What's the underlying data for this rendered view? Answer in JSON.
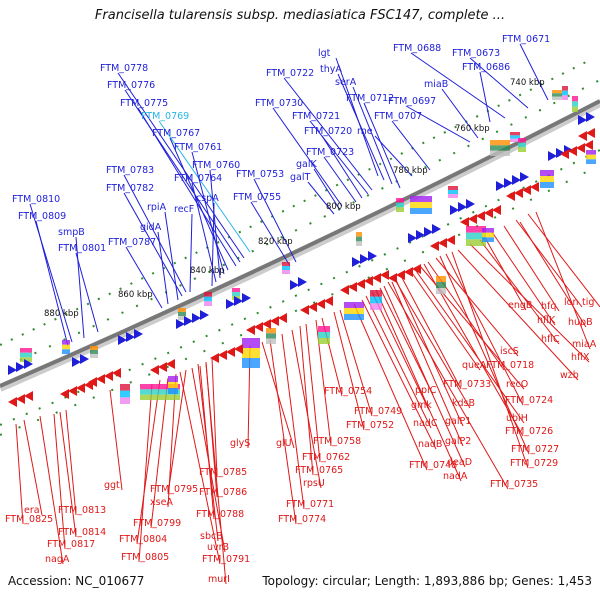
{
  "title": "Francisella tularensis subsp. mediasiatica FSC147, complete ...",
  "footer": {
    "accession": "Accession: NC_010677",
    "summary": "Topology: circular; Length: 1,893,886 bp; Genes: 1,453"
  },
  "colors": {
    "forward": "#1f1fd9",
    "reverse": "#e01818",
    "highlight": "#29b6e8",
    "backbone": "#808080",
    "dots": "#2e8b2e"
  },
  "ticks": [
    "740 kbp",
    "760 kbp",
    "780 kbp",
    "800 kbp",
    "820 kbp",
    "840 kbp",
    "860 kbp",
    "880 kbp"
  ],
  "forward_labels": [
    "FTM_0671",
    "FTM_0673",
    "FTM_0688",
    "FTM_0686",
    "FTM_0697",
    "miaB",
    "lgt",
    "thyA",
    "serA",
    "FTM_0712",
    "FTM_0722",
    "FTM_0721",
    "FTM_0720",
    "rne",
    "FTM_0707",
    "FTM_0723",
    "FTM_0730",
    "galK",
    "galT",
    "FTM_0778",
    "FTM_0776",
    "FTM_0775",
    "FTM_0769",
    "FTM_0767",
    "FTM_0761",
    "FTM_0760",
    "FTM_0764",
    "cspA",
    "FTM_0753",
    "FTM_0755",
    "FTM_0783",
    "FTM_0782",
    "rpiA",
    "recF",
    "gidA",
    "FTM_0787",
    "FTM_0810",
    "FTM_0809",
    "smpB",
    "FTM_0801"
  ],
  "reverse_labels": [
    "lon",
    "tig",
    "hfq",
    "engB",
    "hflK",
    "hupB",
    "hflC",
    "miaA",
    "hflX",
    "wzb",
    "iscS",
    "FTM_0718",
    "recO",
    "queA",
    "FTM_0733",
    "kdsB",
    "FTM_0724",
    "ubiH",
    "FTM_0726",
    "FTM_0727",
    "FTM_0729",
    "FTM_0735",
    "ppiC",
    "gmk",
    "nadC",
    "galP1",
    "galP2",
    "nadB",
    "deaD",
    "nadA",
    "FTM_0748",
    "FTM_0754",
    "FTM_0749",
    "FTM_0752",
    "FTM_0758",
    "FTM_0762",
    "FTM_0765",
    "rpsU",
    "FTM_0771",
    "FTM_0774",
    "glyS",
    "glU",
    "FTM_0785",
    "FTM_0786",
    "FTM_0788",
    "FTM_0795",
    "xseA",
    "FTM_0799",
    "FTM_0804",
    "FTM_0805",
    "sbcB",
    "uvrB",
    "FTM_0791",
    "murI",
    "ggt",
    "era",
    "FTM_0825",
    "FTM_0813",
    "FTM_0814",
    "FTM_0817",
    "nagA"
  ]
}
